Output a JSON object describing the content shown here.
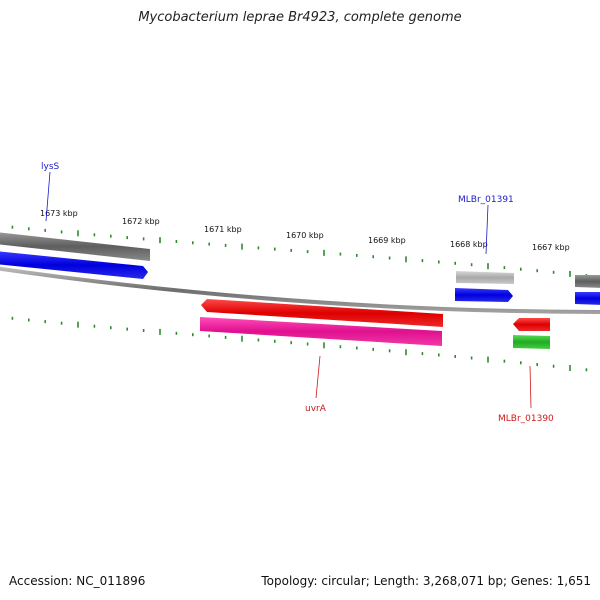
{
  "title": "Mycobacterium leprae Br4923, complete genome",
  "footer": {
    "accession": "Accession: NC_011896",
    "summary": "Topology: circular; Length: 3,268,071 bp; Genes: 1,651"
  },
  "colors": {
    "tick": "#2e8b2e",
    "backbone": "#888888",
    "blue_label": "#1a1acc",
    "red_label": "#cc1a1a"
  },
  "ticks": [
    "1673 kbp",
    "1672 kbp",
    "1671 kbp",
    "1670 kbp",
    "1669 kbp",
    "1668 kbp",
    "1667 kbp"
  ],
  "labels": {
    "lysS": "lysS",
    "mlbr01391": "MLBr_01391",
    "uvrA": "uvrA",
    "mlbr01390": "MLBr_01390"
  }
}
